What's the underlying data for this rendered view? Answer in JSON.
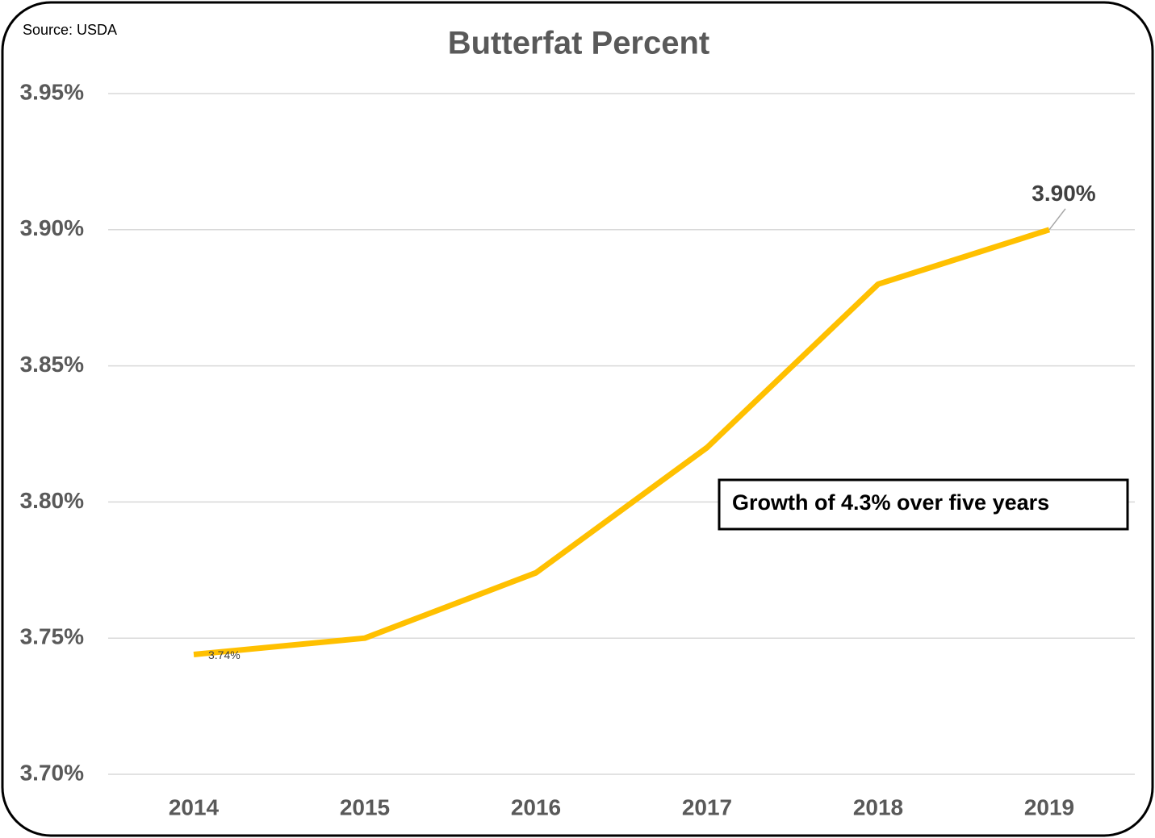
{
  "chart_data": {
    "type": "line",
    "title": "Butterfat Percent",
    "source": "Source: USDA",
    "annotation": "Growth of 4.3% over five years",
    "categories": [
      "2014",
      "2015",
      "2016",
      "2017",
      "2018",
      "2019"
    ],
    "values": [
      3.744,
      3.75,
      3.774,
      3.82,
      3.88,
      3.9
    ],
    "value_labels": [
      "3.74%",
      null,
      null,
      null,
      null,
      "3.90%"
    ],
    "color": "#FFC000",
    "ylim": [
      3.7,
      3.95
    ],
    "yticks": [
      {
        "value": 3.7,
        "label": "3.70%"
      },
      {
        "value": 3.75,
        "label": "3.75%"
      },
      {
        "value": 3.8,
        "label": "3.80%"
      },
      {
        "value": 3.85,
        "label": "3.85%"
      },
      {
        "value": 3.9,
        "label": "3.90%"
      },
      {
        "value": 3.95,
        "label": "3.95%"
      }
    ],
    "grid": true
  }
}
